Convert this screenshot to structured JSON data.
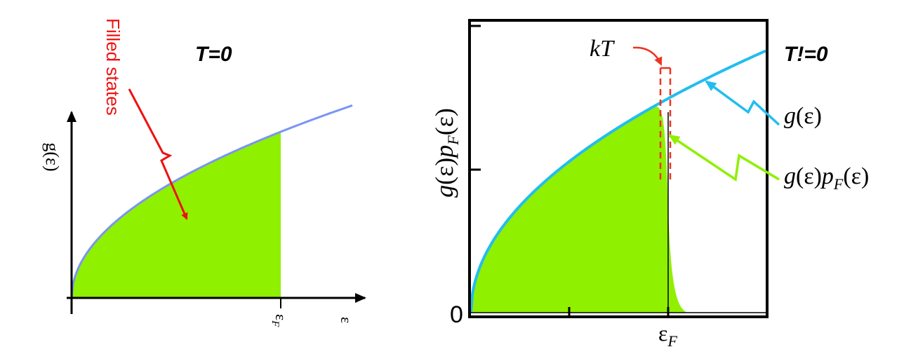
{
  "left_panel": {
    "title": "T=0",
    "y_axis_label": "g(ε)",
    "annotation": "Filled states",
    "x_tick_label": "ε_F",
    "x_axis_label": "ε",
    "colors": {
      "curve": "#7a95f2",
      "fill": "#8ff000",
      "arrow": "#ee1111",
      "text": "#ee1111"
    }
  },
  "right_panel": {
    "title": "T!=0",
    "y_axis_label": "g(ε)p_F(ε)",
    "y_zero_label": "0",
    "x_tick_label": "ε_F",
    "kT_label": "kT",
    "legend_density": "g(ε)",
    "legend_product": "g(ε)p_F(ε)",
    "colors": {
      "curve": "#22bdf0",
      "fill": "#8ff000",
      "kT": "#ee3322",
      "frame": "#000000"
    }
  }
}
